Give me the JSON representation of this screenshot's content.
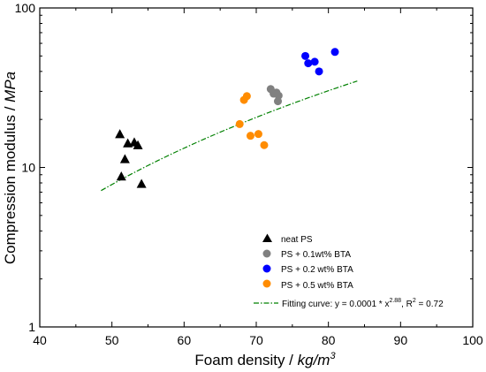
{
  "chart_data": {
    "type": "scatter",
    "title": "",
    "xlabel": {
      "text": "Foam density / ",
      "unit_text": "kg/m",
      "unit_sup": "3"
    },
    "ylabel": {
      "text": "Compression modulus / ",
      "unit_text": "MPa"
    },
    "xlim": [
      40,
      100
    ],
    "ylim": [
      1,
      100
    ],
    "y_scale": "log",
    "grid": false,
    "legend_position": "bottom-right",
    "x_ticks": [
      40,
      50,
      60,
      70,
      80,
      90,
      100
    ],
    "x_tick_labels": [
      "40",
      "50",
      "60",
      "70",
      "80",
      "90",
      "100"
    ],
    "y_ticks": [
      1,
      10,
      100
    ],
    "y_tick_labels": [
      "1",
      "10",
      "100"
    ],
    "series": [
      {
        "name": "neat PS",
        "marker": "triangle",
        "color": "#000000",
        "points": [
          [
            51.1,
            16.2
          ],
          [
            51.3,
            8.8
          ],
          [
            51.8,
            11.3
          ],
          [
            52.2,
            14.2
          ],
          [
            53.1,
            14.4
          ],
          [
            53.6,
            13.8
          ],
          [
            54.1,
            7.9
          ]
        ]
      },
      {
        "name": "PS + 0.1wt% BTA",
        "marker": "circle",
        "color": "#808080",
        "points": [
          [
            72.0,
            31.0
          ],
          [
            72.4,
            29.0
          ],
          [
            72.8,
            29.5
          ],
          [
            73.0,
            26.0
          ],
          [
            73.1,
            28.2
          ]
        ]
      },
      {
        "name": "PS + 0.2 wt% BTA",
        "marker": "circle",
        "color": "#0000ff",
        "points": [
          [
            76.8,
            50.0
          ],
          [
            77.2,
            45.0
          ],
          [
            78.1,
            46.0
          ],
          [
            78.7,
            40.0
          ],
          [
            80.9,
            53.0
          ]
        ]
      },
      {
        "name": "PS + 0.5 wt% BTA",
        "marker": "circle",
        "color": "#ff8c00",
        "points": [
          [
            67.7,
            18.7
          ],
          [
            68.3,
            26.5
          ],
          [
            68.7,
            28.0
          ],
          [
            69.2,
            15.8
          ],
          [
            70.3,
            16.2
          ],
          [
            71.1,
            13.8
          ]
        ]
      }
    ],
    "fit": {
      "label": "Fitting curve: y = 0.0001 * x",
      "exponent": "2.88",
      "label_r2": ", R",
      "r2_exp": "2",
      "r2_value": " = 0.72",
      "color": "#008000",
      "style": "dash-dot",
      "x_range": [
        48.5,
        84.0
      ],
      "coefficient": 0.0001,
      "exponent_value": 2.88
    }
  }
}
